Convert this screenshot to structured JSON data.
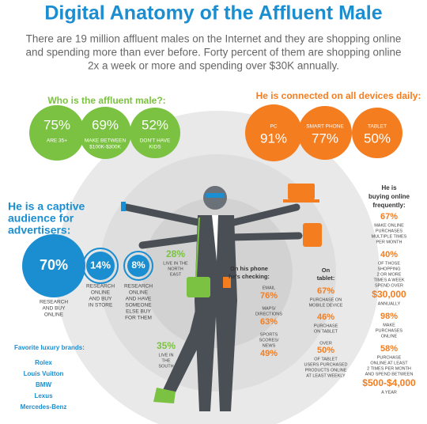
{
  "title": "Digital Anatomy of the Affluent Male",
  "intro": [
    "There are 19 million affluent males on the Internet and they are shopping online",
    "and spending more than ever before. Forty percent of them are shopping online",
    "2x a week or more and spending over $30K annually."
  ],
  "who": {
    "heading": "Who is the affluent male?:",
    "stats": [
      {
        "value": "75%",
        "label": [
          "ARE 35+"
        ]
      },
      {
        "value": "69%",
        "label": [
          "MAKE BETWEEN",
          "$100K-$300K"
        ]
      },
      {
        "value": "52%",
        "label": [
          "DON'T HAVE",
          "KIDS"
        ]
      }
    ]
  },
  "devices": {
    "heading": "He is connected on all devices daily:",
    "stats": [
      {
        "name": "PC",
        "value": "91%"
      },
      {
        "name": "SMART PHONE",
        "value": "77%"
      },
      {
        "name": "TABLET",
        "value": "50%"
      }
    ]
  },
  "advertisers": {
    "heading": [
      "He is a captive",
      "audience for",
      "advertisers:"
    ],
    "stats": [
      {
        "value": "70%",
        "label": [
          "RESEARCH",
          "AND BUY",
          "ONLINE"
        ]
      },
      {
        "value": "14%",
        "label": [
          "RESEARCH",
          "ONLINE",
          "AND BUY",
          "IN STORE"
        ]
      },
      {
        "value": "8%",
        "label": [
          "RESEARCH",
          "ONLINE",
          "AND HAVE",
          "SOMEONE",
          "ELSE BUY",
          "FOR THEM"
        ]
      }
    ]
  },
  "regions": [
    {
      "value": "28%",
      "label": [
        "LIVE IN THE",
        "NORTH",
        "EAST"
      ]
    },
    {
      "value": "35%",
      "label": [
        "LIVE IN",
        "THE",
        "SOUTH"
      ]
    }
  ],
  "brands": {
    "heading": "Favorite luxury brands:",
    "items": [
      "Rolex",
      "Louis Vuitton",
      "BMW",
      "Lexus",
      "Mercedes-Benz"
    ]
  },
  "phone": {
    "heading": [
      "On his phone",
      "he's checking:"
    ],
    "items": [
      {
        "label": [
          "EMAIL"
        ],
        "value": "76%"
      },
      {
        "label": [
          "MAPS/",
          "DIRECTIONS"
        ],
        "value": "63%"
      },
      {
        "label": [
          "SPORTS",
          "SCORES/",
          "NEWS"
        ],
        "value": "49%"
      }
    ]
  },
  "tablet": {
    "heading": [
      "On",
      "tablet:"
    ],
    "items": [
      {
        "value": "67%",
        "label": [
          "PURCHASE ON",
          "MOBILE DEVICE"
        ]
      },
      {
        "value": "46%",
        "label": [
          "PURCHASE",
          "ON TABLET"
        ]
      },
      {
        "prefix": "OVER",
        "value": "50%",
        "label": [
          "OF TABLET",
          "USERS PURCHASED",
          "PRODUCTS ONLINE",
          "AT LEAST WEEKLY"
        ]
      }
    ]
  },
  "online": {
    "heading": [
      "He is",
      "buying online",
      "frequently:"
    ],
    "items": [
      {
        "value": "67%",
        "label": [
          "MAKE ONLINE",
          "PURCHASES",
          "MULTIPLE TIMES",
          "PER MONTH"
        ]
      },
      {
        "value": "40%",
        "label": [
          "OF THOSE",
          "SHOPPING",
          "2 OR MORE",
          "TIMES A WEEK",
          "SPEND OVER"
        ],
        "amount": "$30,000",
        "after": [
          "ANNUALLY"
        ]
      },
      {
        "value": "98%",
        "label": [
          "MAKE",
          "PURCHASES",
          "ONLINE"
        ]
      },
      {
        "value": "58%",
        "label": [
          "PURCHASE",
          "ONLINE AT LEAST",
          "2 TIMES PER MONTH",
          "AND SPEND BETWEEN"
        ],
        "amount": "$500-$4,000",
        "after": [
          "A YEAR"
        ]
      }
    ]
  }
}
